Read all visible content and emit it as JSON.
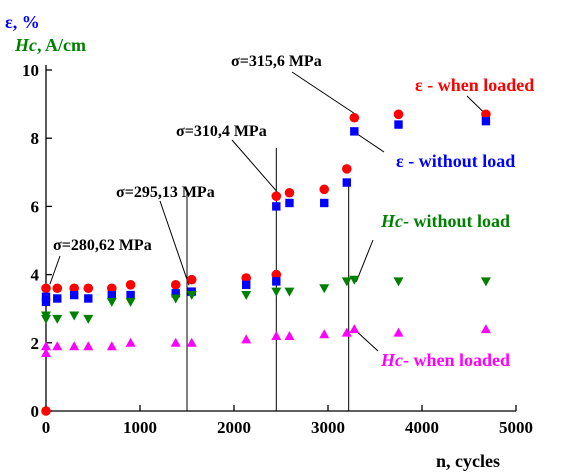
{
  "chart_data": {
    "type": "scatter",
    "ylabel_top": "ε, %",
    "ylabel_symbol": "Hc",
    "ylabel_unit": ", A/cm",
    "xlabel": "n, cycles",
    "xlim": [
      0,
      5000
    ],
    "ylim": [
      0,
      10
    ],
    "x_ticks": [
      0,
      1000,
      2000,
      3000,
      4000,
      5000
    ],
    "y_ticks": [
      0,
      2,
      4,
      6,
      8,
      10
    ],
    "colors": {
      "eps_loaded": "#ff0000",
      "eps_unloaded": "#0000ff",
      "hc_unloaded": "#008000",
      "hc_loaded": "#ff00ff",
      "axis": "#000000"
    },
    "series": [
      {
        "key": "eps_loaded",
        "marker": "circle",
        "points": [
          [
            0,
            0
          ],
          [
            0,
            3.6
          ],
          [
            120,
            3.6
          ],
          [
            300,
            3.6
          ],
          [
            450,
            3.6
          ],
          [
            700,
            3.6
          ],
          [
            900,
            3.7
          ],
          [
            1380,
            3.7
          ],
          [
            1550,
            3.85
          ],
          [
            2130,
            3.9
          ],
          [
            2450,
            4.0
          ],
          [
            2450,
            6.3
          ],
          [
            2590,
            6.4
          ],
          [
            2960,
            6.5
          ],
          [
            3200,
            7.1
          ],
          [
            3280,
            8.6
          ],
          [
            3750,
            8.7
          ],
          [
            4680,
            8.7
          ]
        ]
      },
      {
        "key": "eps_unloaded",
        "marker": "square",
        "points": [
          [
            0,
            3.2
          ],
          [
            0,
            3.35
          ],
          [
            120,
            3.3
          ],
          [
            300,
            3.4
          ],
          [
            450,
            3.3
          ],
          [
            700,
            3.4
          ],
          [
            900,
            3.4
          ],
          [
            1380,
            3.45
          ],
          [
            1550,
            3.5
          ],
          [
            2130,
            3.7
          ],
          [
            2450,
            3.8
          ],
          [
            2450,
            6.0
          ],
          [
            2590,
            6.1
          ],
          [
            2960,
            6.1
          ],
          [
            3200,
            6.7
          ],
          [
            3280,
            8.2
          ],
          [
            3750,
            8.4
          ],
          [
            4680,
            8.5
          ]
        ]
      },
      {
        "key": "hc_unloaded",
        "marker": "triangle-down",
        "points": [
          [
            0,
            2.7
          ],
          [
            0,
            2.8
          ],
          [
            120,
            2.7
          ],
          [
            300,
            2.8
          ],
          [
            450,
            2.7
          ],
          [
            700,
            3.2
          ],
          [
            900,
            3.2
          ],
          [
            1380,
            3.3
          ],
          [
            1550,
            3.4
          ],
          [
            2130,
            3.4
          ],
          [
            2450,
            3.5
          ],
          [
            2590,
            3.5
          ],
          [
            2960,
            3.6
          ],
          [
            3200,
            3.8
          ],
          [
            3280,
            3.85
          ],
          [
            3750,
            3.8
          ],
          [
            4680,
            3.8
          ]
        ]
      },
      {
        "key": "hc_loaded",
        "marker": "triangle-up",
        "points": [
          [
            0,
            1.7
          ],
          [
            0,
            1.9
          ],
          [
            120,
            1.9
          ],
          [
            300,
            1.9
          ],
          [
            450,
            1.9
          ],
          [
            700,
            1.9
          ],
          [
            900,
            2.0
          ],
          [
            1380,
            2.0
          ],
          [
            1550,
            2.0
          ],
          [
            2130,
            2.1
          ],
          [
            2450,
            2.2
          ],
          [
            2590,
            2.2
          ],
          [
            2960,
            2.25
          ],
          [
            3200,
            2.3
          ],
          [
            3280,
            2.4
          ],
          [
            3750,
            2.3
          ],
          [
            4680,
            2.4
          ]
        ]
      }
    ],
    "stress_lines_x": [
      1500,
      2450,
      3220
    ],
    "annotations": [
      {
        "text": "σ=280,62 MPa",
        "target": [
          0,
          3.6
        ]
      },
      {
        "text": "σ=295,13 MPa",
        "target": [
          1500,
          3.6
        ]
      },
      {
        "text": "σ=310,4 MPa",
        "target": [
          2450,
          6.3
        ]
      },
      {
        "text": "σ=315,6 MPa",
        "target": [
          3280,
          8.6
        ]
      }
    ],
    "legend_labels": [
      {
        "key": "eps_loaded",
        "symbol": "ε",
        "text": " - when loaded",
        "target": [
          4680,
          8.7
        ]
      },
      {
        "key": "eps_unloaded",
        "symbol": "ε",
        "text": " - without load",
        "target": [
          3280,
          8.2
        ]
      },
      {
        "key": "hc_unloaded",
        "symbol": "Hc",
        "text": "- without load",
        "target": [
          3280,
          3.85
        ]
      },
      {
        "key": "hc_loaded",
        "symbol": "Hc",
        "text": "- when loaded",
        "target": [
          3280,
          2.4
        ]
      }
    ]
  }
}
